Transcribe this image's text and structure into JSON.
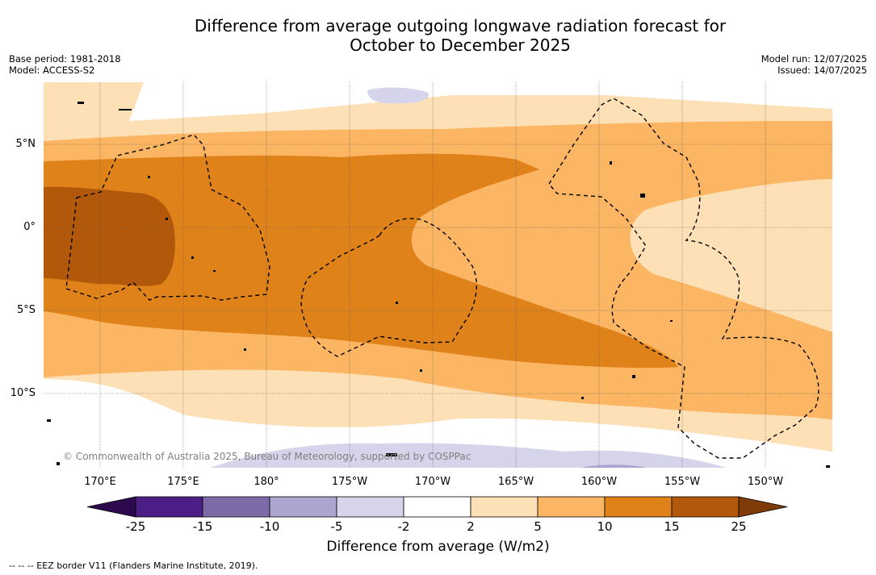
{
  "title": {
    "line1": "Difference from average outgoing longwave radiation forecast for",
    "line2": "October to December 2025"
  },
  "meta_left": {
    "base_period": "Base period: 1981-2018",
    "model": "Model: ACCESS-S2"
  },
  "meta_right": {
    "model_run": "Model run: 12/07/2025",
    "issued": "Issued: 14/07/2025"
  },
  "map": {
    "lat_labels": [
      "5°N",
      "0°",
      "5°S",
      "10°S"
    ],
    "lon_labels": [
      "170°E",
      "175°E",
      "180°",
      "175°W",
      "170°W",
      "165°W",
      "160°W",
      "155°W",
      "150°W"
    ],
    "credit": "© Commonwealth of Australia 2025, Bureau of Meteorology, supported by COSPPac",
    "legend_note": "--  --  -- EEZ border V11 (Flanders Marine Institute, 2019)."
  },
  "colorbar": {
    "label": "Difference from average (W/m2)",
    "ticks": [
      "-25",
      "-15",
      "-10",
      "-5",
      "-2",
      "2",
      "5",
      "10",
      "15",
      "25"
    ],
    "colors": [
      "#4b1f85",
      "#7d6ba8",
      "#aca5cf",
      "#d5d4ea",
      "#ffffff",
      "#fde0b5",
      "#fbb563",
      "#e0821a",
      "#b1580a"
    ],
    "under_color": "#2d0a4e",
    "over_color": "#7f3c08"
  }
}
